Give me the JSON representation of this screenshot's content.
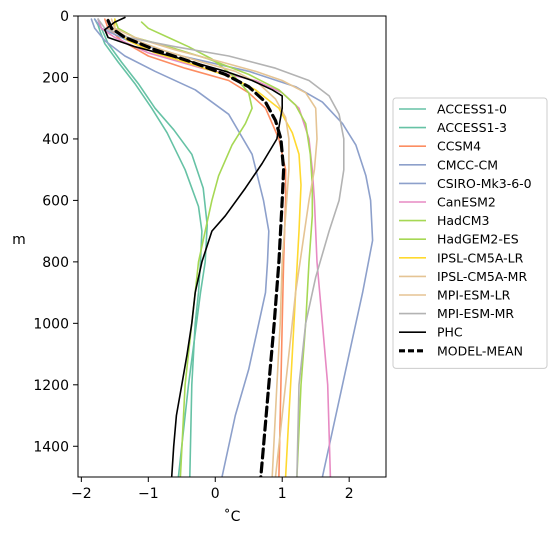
{
  "chart_data": {
    "type": "line",
    "title": "",
    "xlabel": "˚C",
    "ylabel": "m",
    "xlim": [
      -2.05,
      2.55
    ],
    "ylim": [
      1500,
      0
    ],
    "x_ticks": [
      "−2",
      "−1",
      "0",
      "1",
      "2"
    ],
    "x_tick_values": [
      -2,
      -1,
      0,
      1,
      2
    ],
    "y_ticks": [
      "0",
      "200",
      "400",
      "600",
      "800",
      "1000",
      "1200",
      "1400"
    ],
    "y_tick_values": [
      0,
      200,
      400,
      600,
      800,
      1000,
      1200,
      1400
    ],
    "legend_position": "right",
    "grid": false,
    "series": [
      {
        "name": "ACCESS1-0",
        "color": "#66c2a5",
        "width": 1.6,
        "dash": "",
        "points": [
          [
            -1.8,
            10
          ],
          [
            -1.75,
            30
          ],
          [
            -1.72,
            50
          ],
          [
            -1.65,
            90
          ],
          [
            -1.45,
            150
          ],
          [
            -1.2,
            220
          ],
          [
            -0.95,
            300
          ],
          [
            -0.72,
            380
          ],
          [
            -0.45,
            500
          ],
          [
            -0.25,
            620
          ],
          [
            -0.2,
            700
          ],
          [
            -0.22,
            800
          ],
          [
            -0.25,
            900
          ],
          [
            -0.3,
            1000
          ],
          [
            -0.35,
            1200
          ],
          [
            -0.38,
            1500
          ]
        ]
      },
      {
        "name": "ACCESS1-3",
        "color": "#66c2a5",
        "width": 1.6,
        "dash": "",
        "points": [
          [
            -1.75,
            10
          ],
          [
            -1.72,
            30
          ],
          [
            -1.68,
            50
          ],
          [
            -1.6,
            90
          ],
          [
            -1.4,
            150
          ],
          [
            -1.15,
            220
          ],
          [
            -0.9,
            300
          ],
          [
            -0.62,
            370
          ],
          [
            -0.35,
            450
          ],
          [
            -0.18,
            560
          ],
          [
            -0.12,
            680
          ],
          [
            -0.15,
            800
          ],
          [
            -0.22,
            900
          ],
          [
            -0.28,
            1000
          ],
          [
            -0.4,
            1200
          ],
          [
            -0.55,
            1500
          ]
        ]
      },
      {
        "name": "CCSM4",
        "color": "#fc8d62",
        "width": 1.6,
        "dash": "",
        "points": [
          [
            -1.65,
            10
          ],
          [
            -1.6,
            40
          ],
          [
            -1.4,
            80
          ],
          [
            -1.0,
            130
          ],
          [
            -0.45,
            170
          ],
          [
            0.2,
            210
          ],
          [
            0.5,
            250
          ],
          [
            0.75,
            300
          ],
          [
            0.95,
            400
          ],
          [
            1.05,
            500
          ],
          [
            1.05,
            600
          ],
          [
            1.02,
            800
          ],
          [
            1.0,
            1000
          ],
          [
            0.98,
            1200
          ],
          [
            0.95,
            1500
          ]
        ]
      },
      {
        "name": "CMCC-CM",
        "color": "#8da0cb",
        "width": 1.6,
        "dash": "",
        "points": [
          [
            -1.8,
            10
          ],
          [
            -1.7,
            40
          ],
          [
            -1.3,
            80
          ],
          [
            -0.5,
            130
          ],
          [
            0.5,
            180
          ],
          [
            1.2,
            230
          ],
          [
            1.6,
            280
          ],
          [
            1.9,
            350
          ],
          [
            2.1,
            420
          ],
          [
            2.25,
            520
          ],
          [
            2.32,
            600
          ],
          [
            2.35,
            730
          ],
          [
            2.2,
            900
          ],
          [
            2.05,
            1050
          ],
          [
            1.9,
            1200
          ],
          [
            1.6,
            1500
          ]
        ]
      },
      {
        "name": "CSIRO-Mk3-6-0",
        "color": "#8da0cb",
        "width": 1.6,
        "dash": "",
        "points": [
          [
            -1.85,
            10
          ],
          [
            -1.8,
            40
          ],
          [
            -1.65,
            80
          ],
          [
            -1.35,
            130
          ],
          [
            -0.9,
            180
          ],
          [
            -0.3,
            240
          ],
          [
            0.2,
            320
          ],
          [
            0.55,
            450
          ],
          [
            0.72,
            600
          ],
          [
            0.8,
            700
          ],
          [
            0.78,
            800
          ],
          [
            0.75,
            900
          ],
          [
            0.65,
            1000
          ],
          [
            0.5,
            1150
          ],
          [
            0.3,
            1300
          ],
          [
            0.1,
            1500
          ]
        ]
      },
      {
        "name": "CanESM2",
        "color": "#e78ac3",
        "width": 1.6,
        "dash": "",
        "points": [
          [
            -1.75,
            10
          ],
          [
            -1.7,
            40
          ],
          [
            -1.5,
            70
          ],
          [
            -1.0,
            120
          ],
          [
            -0.2,
            170
          ],
          [
            0.6,
            210
          ],
          [
            1.0,
            250
          ],
          [
            1.25,
            300
          ],
          [
            1.4,
            400
          ],
          [
            1.45,
            500
          ],
          [
            1.48,
            600
          ],
          [
            1.52,
            800
          ],
          [
            1.6,
            1000
          ],
          [
            1.68,
            1200
          ],
          [
            1.72,
            1500
          ]
        ]
      },
      {
        "name": "HadCM3",
        "color": "#a6d854",
        "width": 1.6,
        "dash": "",
        "points": [
          [
            -1.1,
            20
          ],
          [
            -1.0,
            40
          ],
          [
            -0.7,
            70
          ],
          [
            -0.4,
            100
          ],
          [
            -0.05,
            140
          ],
          [
            0.3,
            200
          ],
          [
            0.5,
            250
          ],
          [
            0.55,
            300
          ],
          [
            0.45,
            350
          ],
          [
            0.25,
            420
          ],
          [
            0.05,
            520
          ],
          [
            -0.05,
            600
          ],
          [
            -0.15,
            700
          ],
          [
            -0.25,
            800
          ],
          [
            -0.3,
            900
          ],
          [
            -0.35,
            1000
          ],
          [
            -0.45,
            1200
          ],
          [
            -0.52,
            1500
          ]
        ]
      },
      {
        "name": "HadGEM2-ES",
        "color": "#a6d854",
        "width": 1.6,
        "dash": "",
        "points": [
          [
            -1.5,
            10
          ],
          [
            -1.45,
            40
          ],
          [
            -1.2,
            70
          ],
          [
            -0.7,
            100
          ],
          [
            -0.1,
            140
          ],
          [
            0.5,
            190
          ],
          [
            0.95,
            240
          ],
          [
            1.2,
            290
          ],
          [
            1.35,
            350
          ],
          [
            1.42,
            450
          ],
          [
            1.45,
            550
          ],
          [
            1.45,
            650
          ],
          [
            1.4,
            800
          ],
          [
            1.35,
            1000
          ],
          [
            1.28,
            1200
          ],
          [
            1.22,
            1500
          ]
        ]
      },
      {
        "name": "IPSL-CM5A-LR",
        "color": "#ffd92f",
        "width": 1.6,
        "dash": "",
        "points": [
          [
            -1.5,
            10
          ],
          [
            -1.5,
            40
          ],
          [
            -1.3,
            80
          ],
          [
            -0.9,
            120
          ],
          [
            -0.3,
            160
          ],
          [
            0.25,
            200
          ],
          [
            0.6,
            240
          ],
          [
            0.95,
            300
          ],
          [
            1.15,
            380
          ],
          [
            1.25,
            450
          ],
          [
            1.28,
            550
          ],
          [
            1.25,
            700
          ],
          [
            1.2,
            900
          ],
          [
            1.15,
            1100
          ],
          [
            1.1,
            1300
          ],
          [
            1.05,
            1500
          ]
        ]
      },
      {
        "name": "IPSL-CM5A-MR",
        "color": "#e5c494",
        "width": 1.6,
        "dash": "",
        "points": [
          [
            -1.55,
            10
          ],
          [
            -1.5,
            40
          ],
          [
            -1.2,
            70
          ],
          [
            -0.6,
            110
          ],
          [
            0.1,
            150
          ],
          [
            0.6,
            180
          ],
          [
            1.0,
            210
          ],
          [
            1.35,
            250
          ],
          [
            1.5,
            300
          ],
          [
            1.52,
            400
          ],
          [
            1.48,
            500
          ],
          [
            1.4,
            600
          ],
          [
            1.3,
            750
          ],
          [
            1.2,
            900
          ],
          [
            1.1,
            1100
          ],
          [
            1.0,
            1300
          ],
          [
            0.9,
            1500
          ]
        ]
      },
      {
        "name": "MPI-ESM-LR",
        "color": "#e5c494",
        "width": 1.6,
        "dash": "",
        "points": [
          [
            -1.6,
            10
          ],
          [
            -1.55,
            40
          ],
          [
            -1.3,
            70
          ],
          [
            -0.8,
            110
          ],
          [
            -0.2,
            150
          ],
          [
            0.3,
            180
          ],
          [
            0.65,
            220
          ],
          [
            0.9,
            270
          ],
          [
            1.05,
            330
          ],
          [
            1.1,
            400
          ],
          [
            1.1,
            500
          ],
          [
            1.05,
            650
          ],
          [
            1.0,
            800
          ],
          [
            0.97,
            1000
          ],
          [
            0.92,
            1200
          ],
          [
            0.85,
            1500
          ]
        ]
      },
      {
        "name": "MPI-ESM-MR",
        "color": "#b3b3b3",
        "width": 1.6,
        "dash": "",
        "points": [
          [
            -1.75,
            10
          ],
          [
            -1.65,
            40
          ],
          [
            -1.3,
            70
          ],
          [
            -0.6,
            100
          ],
          [
            0.2,
            130
          ],
          [
            0.9,
            170
          ],
          [
            1.4,
            210
          ],
          [
            1.7,
            260
          ],
          [
            1.85,
            320
          ],
          [
            1.92,
            400
          ],
          [
            1.92,
            500
          ],
          [
            1.85,
            600
          ],
          [
            1.7,
            700
          ],
          [
            1.5,
            850
          ],
          [
            1.35,
            1000
          ],
          [
            1.25,
            1200
          ],
          [
            1.22,
            1500
          ]
        ]
      },
      {
        "name": "PHC",
        "color": "#000000",
        "width": 1.6,
        "dash": "",
        "points": [
          [
            -1.35,
            5
          ],
          [
            -1.5,
            20
          ],
          [
            -1.65,
            45
          ],
          [
            -1.6,
            70
          ],
          [
            -1.2,
            100
          ],
          [
            -0.5,
            140
          ],
          [
            0.15,
            180
          ],
          [
            0.55,
            210
          ],
          [
            0.85,
            240
          ],
          [
            1.0,
            260
          ],
          [
            1.0,
            300
          ],
          [
            0.92,
            400
          ],
          [
            0.7,
            480
          ],
          [
            0.45,
            560
          ],
          [
            0.15,
            650
          ],
          [
            -0.05,
            700
          ],
          [
            -0.2,
            800
          ],
          [
            -0.3,
            900
          ],
          [
            -0.35,
            1000
          ],
          [
            -0.42,
            1100
          ],
          [
            -0.5,
            1200
          ],
          [
            -0.58,
            1300
          ],
          [
            -0.62,
            1400
          ],
          [
            -0.65,
            1500
          ]
        ]
      },
      {
        "name": "MODEL-MEAN",
        "color": "#000000",
        "width": 3.2,
        "dash": "9,5",
        "points": [
          [
            -1.6,
            15
          ],
          [
            -1.55,
            40
          ],
          [
            -1.35,
            70
          ],
          [
            -0.9,
            110
          ],
          [
            -0.35,
            150
          ],
          [
            0.15,
            190
          ],
          [
            0.5,
            230
          ],
          [
            0.75,
            280
          ],
          [
            0.9,
            340
          ],
          [
            0.98,
            400
          ],
          [
            1.02,
            500
          ],
          [
            1.0,
            600
          ],
          [
            0.95,
            800
          ],
          [
            0.88,
            1000
          ],
          [
            0.8,
            1200
          ],
          [
            0.72,
            1400
          ],
          [
            0.68,
            1500
          ]
        ]
      }
    ]
  }
}
